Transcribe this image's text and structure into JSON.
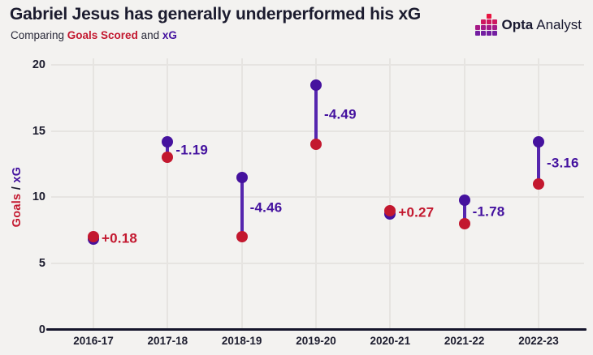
{
  "header": {
    "title": "Gabriel Jesus has generally underperformed his xG",
    "subtitle": {
      "prefix": "Comparing ",
      "goals_label": "Goals Scored",
      "conjunction": " and ",
      "xg_label": "xG"
    },
    "logo": {
      "bold": "Opta",
      "regular": "Analyst"
    }
  },
  "colors": {
    "background": "#f3f2f0",
    "title_text": "#1b1b2e",
    "goals": "#c3182f",
    "xg_dot": "#45129e",
    "xg_line": "#5526ae",
    "xg_text": "#44129f",
    "gridline": "#e6e4e1",
    "axis": "#15152b"
  },
  "chart_data": {
    "type": "scatter",
    "title": "Gabriel Jesus has generally underperformed his xG",
    "subtitle": "Comparing Goals Scored and xG",
    "categories": [
      "2016-17",
      "2017-18",
      "2018-19",
      "2019-20",
      "2020-21",
      "2021-22",
      "2022-23"
    ],
    "series": [
      {
        "name": "Goals Scored",
        "color": "#c3182f",
        "values": [
          7,
          13,
          7,
          14,
          9,
          8,
          11
        ]
      },
      {
        "name": "xG",
        "color": "#45129e",
        "values": [
          6.82,
          14.19,
          11.46,
          18.49,
          8.73,
          9.78,
          14.16
        ]
      }
    ],
    "diff_labels": [
      "+0.18",
      "-1.19",
      "-4.46",
      "-4.49",
      "+0.27",
      "-1.78",
      "-3.16"
    ],
    "ylabel_parts": {
      "goals": "Goals",
      "sep": " / ",
      "xg": "xG"
    },
    "xlabel": "",
    "yticks": [
      "0",
      "5",
      "10",
      "15",
      "20"
    ],
    "ylim": [
      0,
      20
    ],
    "grid": true,
    "legend_position": "none"
  }
}
